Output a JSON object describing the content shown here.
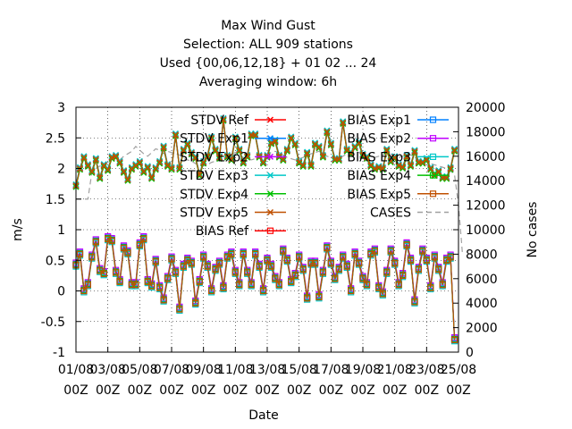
{
  "chart_data": {
    "type": "line",
    "title_lines": [
      "Max Wind Gust",
      "Selection: ALL    909 stations",
      "Used {00,06,12,18} + 01 02 ... 24",
      "Averaging window:  6h"
    ],
    "xlabel": "Date",
    "ylabel": "m/s",
    "y2label": "No cases",
    "ylim": [
      -1,
      3
    ],
    "y2lim": [
      0,
      20000
    ],
    "yticks": [
      "-1",
      "-0.5",
      "0",
      "0.5",
      "1",
      "1.5",
      "2",
      "2.5",
      "3"
    ],
    "y2ticks": [
      "0",
      "2000",
      "4000",
      "6000",
      "8000",
      "10000",
      "12000",
      "14000",
      "16000",
      "18000",
      "20000"
    ],
    "xticks": [
      {
        "d": "01/08",
        "h": "00Z"
      },
      {
        "d": "03/08",
        "h": "00Z"
      },
      {
        "d": "05/08",
        "h": "00Z"
      },
      {
        "d": "07/08",
        "h": "00Z"
      },
      {
        "d": "09/08",
        "h": "00Z"
      },
      {
        "d": "11/08",
        "h": "00Z"
      },
      {
        "d": "13/08",
        "h": "00Z"
      },
      {
        "d": "15/08",
        "h": "00Z"
      },
      {
        "d": "17/08",
        "h": "00Z"
      },
      {
        "d": "19/08",
        "h": "00Z"
      },
      {
        "d": "21/08",
        "h": "00Z"
      },
      {
        "d": "23/08",
        "h": "00Z"
      },
      {
        "d": "25/08",
        "h": "00Z"
      }
    ],
    "grid": true,
    "legend_position": "top, inside plot",
    "x_start": "01/08 00Z",
    "x_step_hours": 6,
    "x_range_days": [
      0,
      24
    ],
    "stdv_base": [
      1.72,
      2.0,
      2.18,
      2.05,
      1.95,
      2.15,
      1.85,
      2.05,
      1.98,
      2.18,
      2.2,
      2.1,
      1.95,
      1.82,
      2.0,
      2.05,
      2.1,
      1.95,
      2.02,
      1.85,
      2.0,
      2.1,
      2.35,
      2.05,
      2.0,
      2.55,
      2.0,
      2.3,
      2.4,
      2.25,
      2.18,
      1.9,
      2.1,
      2.2,
      2.5,
      2.3,
      2.18,
      2.8,
      2.2,
      2.15,
      2.5,
      2.3,
      2.1,
      2.2,
      2.55,
      2.55,
      2.2,
      2.1,
      2.2,
      2.42,
      2.45,
      2.2,
      2.15,
      2.3,
      2.5,
      2.4,
      2.1,
      2.05,
      2.25,
      2.05,
      2.4,
      2.35,
      2.2,
      2.6,
      2.4,
      2.15,
      2.15,
      2.75,
      2.3,
      2.25,
      2.35,
      2.42,
      2.22,
      2.18,
      2.05,
      2.0,
      2.02,
      2.0,
      2.3,
      2.12,
      2.18,
      2.05,
      2.02,
      2.2,
      2.05,
      2.28,
      2.1,
      2.1,
      2.15,
      2.0,
      1.9,
      1.95,
      1.85,
      1.85,
      2.0,
      2.3
    ],
    "bias_base": [
      0.42,
      0.6,
      0.0,
      0.1,
      0.55,
      0.8,
      0.33,
      0.28,
      0.85,
      0.82,
      0.3,
      0.15,
      0.7,
      0.62,
      0.1,
      0.1,
      0.75,
      0.85,
      0.15,
      0.08,
      0.48,
      0.05,
      -0.15,
      0.2,
      0.52,
      0.3,
      -0.3,
      0.4,
      0.5,
      0.45,
      -0.2,
      0.15,
      0.55,
      0.4,
      0.0,
      0.35,
      0.45,
      0.05,
      0.55,
      0.6,
      0.3,
      0.1,
      0.6,
      0.3,
      0.1,
      0.6,
      0.4,
      0.0,
      0.5,
      0.4,
      0.2,
      0.1,
      0.65,
      0.5,
      0.15,
      0.25,
      0.55,
      0.35,
      -0.12,
      0.45,
      0.45,
      -0.1,
      0.3,
      0.7,
      0.45,
      0.2,
      0.35,
      0.55,
      0.4,
      0.0,
      0.6,
      0.45,
      0.2,
      0.1,
      0.6,
      0.65,
      0.05,
      -0.05,
      0.3,
      0.65,
      0.45,
      0.1,
      0.25,
      0.75,
      0.5,
      -0.18,
      0.35,
      0.65,
      0.5,
      0.05,
      0.55,
      0.35,
      0.1,
      0.5,
      0.55,
      -0.8
    ],
    "cases": [
      12500,
      12500,
      12500,
      12500,
      14700,
      15000,
      15200,
      15300,
      15500,
      15800,
      15800,
      15700,
      16000,
      16200,
      16400,
      16800,
      16500,
      16200,
      16000,
      16300,
      16600,
      16500,
      16200,
      16400,
      16300,
      16200,
      16100,
      15800,
      15700,
      15600,
      15400,
      15300,
      15200,
      15300,
      15500,
      15600,
      15700,
      15800,
      15900,
      16200,
      16300,
      16100,
      15900,
      15800,
      15700,
      15800,
      15900,
      16000,
      16200,
      16300,
      16400,
      16300,
      16100,
      15900,
      15800,
      15700,
      15800,
      15900,
      16100,
      16200,
      16300,
      16400,
      16200,
      16000,
      15900,
      15800,
      15900,
      16000,
      16200,
      16300,
      16400,
      16300,
      16200,
      16100,
      16000,
      15900,
      16000,
      16100,
      16300,
      16200,
      16000,
      15900,
      16000,
      16200,
      16100,
      15900,
      15700,
      15600,
      15500,
      15400,
      15300,
      15200,
      15100,
      15000,
      14800,
      14500,
      12000,
      8000
    ],
    "series": [
      {
        "name": "STDV Ref",
        "kind": "stdv",
        "color": "#ff0000",
        "marker": "x",
        "offset": 0.0
      },
      {
        "name": "STDV Exp1",
        "kind": "stdv",
        "color": "#0080ff",
        "marker": "x",
        "offset": 0.01
      },
      {
        "name": "STDV Exp2",
        "kind": "stdv",
        "color": "#c000ff",
        "marker": "x",
        "offset": -0.01
      },
      {
        "name": "STDV Exp3",
        "kind": "stdv",
        "color": "#00c8c8",
        "marker": "x",
        "offset": 0.02
      },
      {
        "name": "STDV Exp4",
        "kind": "stdv",
        "color": "#00c000",
        "marker": "x",
        "offset": -0.02
      },
      {
        "name": "STDV Exp5",
        "kind": "stdv",
        "color": "#c05000",
        "marker": "x",
        "offset": 0.0
      },
      {
        "name": "BIAS Ref",
        "kind": "bias",
        "color": "#ff0000",
        "marker": "square",
        "offset": 0.0
      },
      {
        "name": "BIAS Exp1",
        "kind": "bias",
        "color": "#0080ff",
        "marker": "square",
        "offset": 0.02
      },
      {
        "name": "BIAS Exp2",
        "kind": "bias",
        "color": "#c000ff",
        "marker": "square",
        "offset": 0.04
      },
      {
        "name": "BIAS Exp3",
        "kind": "bias",
        "color": "#00c8c8",
        "marker": "square",
        "offset": -0.02
      },
      {
        "name": "BIAS Exp4",
        "kind": "bias",
        "color": "#00c000",
        "marker": "square",
        "offset": 0.01
      },
      {
        "name": "BIAS Exp5",
        "kind": "bias",
        "color": "#c05000",
        "marker": "square",
        "offset": 0.0
      },
      {
        "name": "CASES",
        "kind": "cases",
        "color": "#a0a0a0",
        "marker": "none",
        "offset": 0
      }
    ]
  }
}
